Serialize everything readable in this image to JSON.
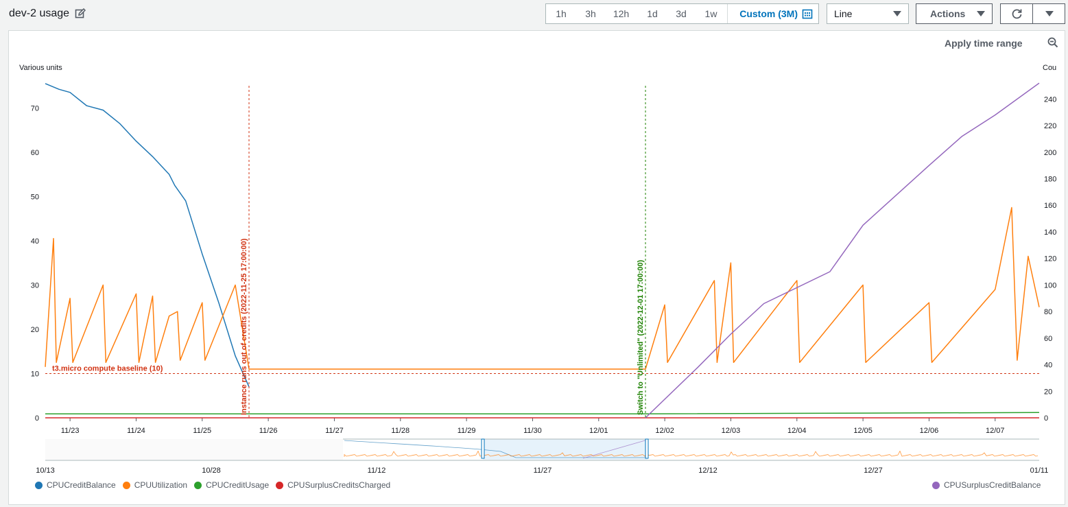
{
  "header": {
    "title": "dev-2 usage",
    "time_ranges": [
      "1h",
      "3h",
      "12h",
      "1d",
      "3d",
      "1w"
    ],
    "custom_range": "Custom (3M)",
    "view_type": "Line",
    "actions_label": "Actions",
    "apply_time_range": "Apply time range"
  },
  "chart_data": {
    "type": "line",
    "ylabel": "Various units",
    "ylabel_right": "Cou",
    "y_ticks": [
      "0",
      "10",
      "20",
      "30",
      "40",
      "50",
      "60",
      "70"
    ],
    "y_ticks_right": [
      "0",
      "20",
      "40",
      "60",
      "80",
      "100",
      "120",
      "140",
      "160",
      "180",
      "200",
      "220",
      "240"
    ],
    "x_ticks": [
      "11/23",
      "11/24",
      "11/25",
      "11/26",
      "11/27",
      "11/28",
      "11/29",
      "11/30",
      "12/01",
      "12/02",
      "12/03",
      "12/04",
      "12/05",
      "12/06",
      "12/07"
    ],
    "ylim": [
      0,
      75
    ],
    "ylim_right": [
      0,
      250
    ],
    "x_start": "2022-11-22 15:00",
    "x_end": "2022-12-07 16:00",
    "annotations": [
      {
        "label": "t3.micro compute baseline (10)",
        "type": "horizontal",
        "value": 10,
        "color": "#d13212"
      },
      {
        "label": "Instance runs out of credits (2022-11-25 17:00:00)",
        "type": "vertical",
        "date": "2022-11-25 17:00",
        "color": "#d13212"
      },
      {
        "label": "Switch to \"Unlimited\" (2022-12-01 17:00:00)",
        "type": "vertical",
        "date": "2022-12-01 17:00",
        "color": "#1d8102"
      }
    ],
    "series": [
      {
        "name": "CPUCreditBalance",
        "color": "#1f77b4",
        "axis": "left",
        "points": [
          [
            "2022-11-22 15:00",
            75.5
          ],
          [
            "2022-11-22 20:00",
            74.2
          ],
          [
            "2022-11-23 00:00",
            73.5
          ],
          [
            "2022-11-23 06:00",
            70.5
          ],
          [
            "2022-11-23 12:00",
            69.5
          ],
          [
            "2022-11-23 18:00",
            66.5
          ],
          [
            "2022-11-24 00:00",
            62.5
          ],
          [
            "2022-11-24 06:00",
            59
          ],
          [
            "2022-11-24 12:00",
            55
          ],
          [
            "2022-11-24 14:00",
            52.5
          ],
          [
            "2022-11-24 18:00",
            49
          ],
          [
            "2022-11-25 00:00",
            37
          ],
          [
            "2022-11-25 06:00",
            26
          ],
          [
            "2022-11-25 12:00",
            14
          ],
          [
            "2022-11-25 17:00",
            7
          ]
        ]
      },
      {
        "name": "CPUUtilization",
        "color": "#ff7f0e",
        "axis": "left",
        "points": [
          [
            "2022-11-22 15:00",
            11.5
          ],
          [
            "2022-11-22 18:00",
            40.5
          ],
          [
            "2022-11-22 19:00",
            12.5
          ],
          [
            "2022-11-23 00:00",
            27
          ],
          [
            "2022-11-23 01:00",
            12.5
          ],
          [
            "2022-11-23 12:00",
            30
          ],
          [
            "2022-11-23 13:00",
            12.5
          ],
          [
            "2022-11-24 00:00",
            28
          ],
          [
            "2022-11-24 01:00",
            12.5
          ],
          [
            "2022-11-24 06:00",
            27.5
          ],
          [
            "2022-11-24 07:00",
            12.5
          ],
          [
            "2022-11-24 12:00",
            23
          ],
          [
            "2022-11-24 15:00",
            24
          ],
          [
            "2022-11-24 16:00",
            13
          ],
          [
            "2022-11-25 00:00",
            26
          ],
          [
            "2022-11-25 01:00",
            13
          ],
          [
            "2022-11-25 12:00",
            30
          ],
          [
            "2022-11-25 17:00",
            11
          ],
          [
            "2022-11-28 00:00",
            11
          ],
          [
            "2022-12-01 17:00",
            11
          ],
          [
            "2022-12-02 00:00",
            25.5
          ],
          [
            "2022-12-02 01:00",
            12.5
          ],
          [
            "2022-12-02 18:00",
            31
          ],
          [
            "2022-12-02 19:00",
            12.5
          ],
          [
            "2022-12-03 00:00",
            35
          ],
          [
            "2022-12-03 01:00",
            12.5
          ],
          [
            "2022-12-04 00:00",
            31
          ],
          [
            "2022-12-04 01:00",
            12.5
          ],
          [
            "2022-12-05 00:00",
            30
          ],
          [
            "2022-12-05 01:00",
            12.5
          ],
          [
            "2022-12-06 00:00",
            26
          ],
          [
            "2022-12-06 01:00",
            12.5
          ],
          [
            "2022-12-07 00:00",
            29
          ],
          [
            "2022-12-07 06:00",
            47.5
          ],
          [
            "2022-12-07 08:00",
            13
          ],
          [
            "2022-12-07 12:00",
            36.5
          ],
          [
            "2022-12-07 16:00",
            25
          ]
        ]
      },
      {
        "name": "CPUCreditUsage",
        "color": "#2ca02c",
        "axis": "left",
        "points": [
          [
            "2022-11-22 15:00",
            0.9
          ],
          [
            "2022-11-25 17:00",
            0.9
          ],
          [
            "2022-12-01 17:00",
            0.9
          ],
          [
            "2022-12-07 16:00",
            1.2
          ]
        ]
      },
      {
        "name": "CPUSurplusCreditsCharged",
        "color": "#d62728",
        "axis": "left",
        "points": [
          [
            "2022-11-22 15:00",
            0
          ],
          [
            "2022-12-07 16:00",
            0
          ]
        ]
      },
      {
        "name": "CPUSurplusCreditBalance",
        "color": "#9467bd",
        "axis": "right",
        "points": [
          [
            "2022-12-01 17:00",
            0
          ],
          [
            "2022-12-02 12:00",
            38
          ],
          [
            "2022-12-03 00:00",
            63
          ],
          [
            "2022-12-03 12:00",
            86
          ],
          [
            "2022-12-04 12:00",
            110
          ],
          [
            "2022-12-05 00:00",
            145
          ],
          [
            "2022-12-06 00:00",
            190
          ],
          [
            "2022-12-06 12:00",
            212
          ],
          [
            "2022-12-07 00:00",
            228
          ],
          [
            "2022-12-07 16:00",
            252
          ]
        ]
      }
    ],
    "navigator": {
      "x_ticks": [
        "10/13",
        "10/28",
        "11/12",
        "11/27",
        "12/12",
        "12/27",
        "01/11"
      ]
    },
    "legend_left": [
      "CPUCreditBalance",
      "CPUUtilization",
      "CPUCreditUsage",
      "CPUSurplusCreditsCharged"
    ],
    "legend_right": [
      "CPUSurplusCreditBalance"
    ],
    "legend_colors": {
      "CPUCreditBalance": "#1f77b4",
      "CPUUtilization": "#ff7f0e",
      "CPUCreditUsage": "#2ca02c",
      "CPUSurplusCreditsCharged": "#d62728",
      "CPUSurplusCreditBalance": "#9467bd"
    }
  }
}
